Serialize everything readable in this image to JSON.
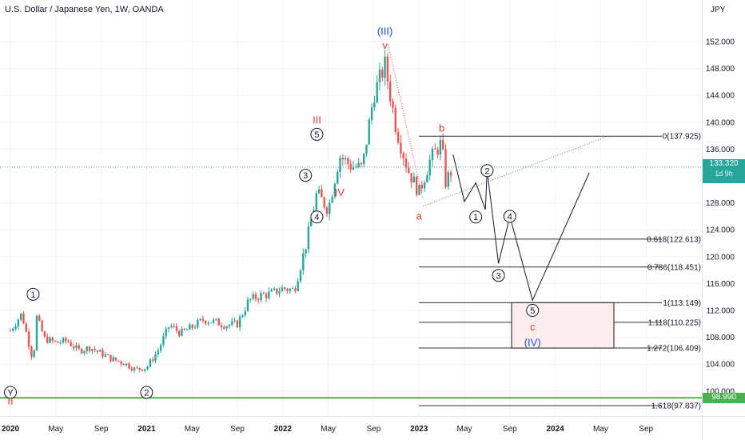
{
  "header": {
    "title": "U.S. Dollar / Japanese Yen, 1W, OANDA",
    "currency": "JPY"
  },
  "price_tags": {
    "current_price": "133.320",
    "countdown": "1d 9h",
    "support_level": "98.990"
  },
  "colors": {
    "up": "#26a69a",
    "down": "#ef5350",
    "current_line": "#26a69a",
    "support_line": "#4caf50",
    "wave_red": "#e53935",
    "wave_blue": "#1e4fd8",
    "projection": "#131722",
    "target_box": "#fdeeee"
  },
  "chart_data": {
    "type": "candlestick",
    "symbol": "USDJPY",
    "interval": "1W",
    "x_axis_ticks": [
      {
        "label": "2020",
        "date": "2020-01"
      },
      {
        "label": "May",
        "date": "2020-05"
      },
      {
        "label": "Sep",
        "date": "2020-09"
      },
      {
        "label": "2021",
        "date": "2021-01"
      },
      {
        "label": "May",
        "date": "2021-05"
      },
      {
        "label": "Sep",
        "date": "2021-09"
      },
      {
        "label": "2022",
        "date": "2022-01"
      },
      {
        "label": "May",
        "date": "2022-05"
      },
      {
        "label": "Sep",
        "date": "2022-09"
      },
      {
        "label": "2023",
        "date": "2023-01"
      },
      {
        "label": "May",
        "date": "2023-05"
      },
      {
        "label": "Sep",
        "date": "2023-09"
      },
      {
        "label": "2024",
        "date": "2024-01"
      },
      {
        "label": "May",
        "date": "2024-05"
      },
      {
        "label": "Sep",
        "date": "2024-09"
      }
    ],
    "y_axis_ticks": [
      "152.000",
      "148.000",
      "144.000",
      "140.000",
      "136.000",
      "128.000",
      "124.000",
      "120.000",
      "116.000",
      "112.000",
      "108.000",
      "104.000",
      "100.000"
    ],
    "ylim": [
      97.0,
      156.0
    ],
    "price_path": [
      [
        "2020-01",
        109.0
      ],
      [
        "2020-02",
        111.5
      ],
      [
        "2020-03",
        104.5
      ],
      [
        "2020-03",
        111.0
      ],
      [
        "2020-04",
        107.8
      ],
      [
        "2020-05",
        107.2
      ],
      [
        "2020-06",
        107.5
      ],
      [
        "2020-07",
        106.0
      ],
      [
        "2020-08",
        106.5
      ],
      [
        "2020-09",
        105.6
      ],
      [
        "2020-10",
        104.7
      ],
      [
        "2020-11",
        104.2
      ],
      [
        "2020-12",
        103.2
      ],
      [
        "2021-01",
        103.5
      ],
      [
        "2021-02",
        106.0
      ],
      [
        "2021-03",
        109.8
      ],
      [
        "2021-04",
        108.6
      ],
      [
        "2021-05",
        109.5
      ],
      [
        "2021-06",
        110.6
      ],
      [
        "2021-07",
        110.3
      ],
      [
        "2021-08",
        109.8
      ],
      [
        "2021-09",
        110.0
      ],
      [
        "2021-10",
        113.5
      ],
      [
        "2021-11",
        114.2
      ],
      [
        "2021-12",
        114.5
      ],
      [
        "2022-01",
        115.3
      ],
      [
        "2022-02",
        115.0
      ],
      [
        "2022-03",
        121.5
      ],
      [
        "2022-04",
        129.5
      ],
      [
        "2022-05",
        127.0
      ],
      [
        "2022-06",
        135.0
      ],
      [
        "2022-07",
        133.5
      ],
      [
        "2022-08",
        133.2
      ],
      [
        "2022-09",
        144.0
      ],
      [
        "2022-10",
        148.5
      ],
      [
        "2022-11",
        139.0
      ],
      [
        "2022-12",
        133.0
      ],
      [
        "2023-01",
        129.5
      ],
      [
        "2023-02",
        134.5
      ],
      [
        "2023-03",
        137.0
      ],
      [
        "2023-03",
        131.0
      ],
      [
        "2023-04",
        133.3
      ]
    ],
    "fibonacci_levels": [
      {
        "label": "0(137.925)",
        "value": 137.925
      },
      {
        "label": "0.618(122.613)",
        "value": 122.613
      },
      {
        "label": "0.786(118.451)",
        "value": 118.451
      },
      {
        "label": "1(113.149)",
        "value": 113.149
      },
      {
        "label": "1.118(110.225)",
        "value": 110.225
      },
      {
        "label": "1.272(106.409)",
        "value": 106.409
      },
      {
        "label": "1.618(97.837)",
        "value": 97.837
      }
    ],
    "current_price": 133.32,
    "support_level": 98.99,
    "target_zone": {
      "from": 106.4,
      "to": 113.15
    },
    "wave_labels": [
      {
        "text": "(III)",
        "date": "2022-10",
        "price": 153.5,
        "color": "blue"
      },
      {
        "text": "v",
        "date": "2022-10",
        "price": 151.4,
        "color": "red"
      },
      {
        "text": "III",
        "date": "2022-04",
        "price": 140.3,
        "color": "red"
      },
      {
        "text": "5",
        "date": "2022-04",
        "price": 138.2,
        "circled": true
      },
      {
        "text": "3",
        "date": "2022-03",
        "price": 132.1,
        "circled": true
      },
      {
        "text": "IV",
        "date": "2022-06",
        "price": 129.5,
        "color": "red"
      },
      {
        "text": "4",
        "date": "2022-04",
        "price": 125.9,
        "circled": true
      },
      {
        "text": "b",
        "date": "2023-03",
        "price": 139.1,
        "color": "red"
      },
      {
        "text": "a",
        "date": "2023-01",
        "price": 126.0,
        "color": "red"
      },
      {
        "text": "2",
        "date": "2023-07",
        "price": 132.8,
        "circled": true
      },
      {
        "text": "1",
        "date": "2023-06",
        "price": 125.9,
        "circled": true
      },
      {
        "text": "4",
        "date": "2023-09",
        "price": 126.0,
        "circled": true
      },
      {
        "text": "3",
        "date": "2023-08",
        "price": 117.2,
        "circled": true
      },
      {
        "text": "5",
        "date": "2023-11",
        "price": 112.0,
        "circled": true
      },
      {
        "text": "c",
        "date": "2023-11",
        "price": 109.5,
        "color": "red"
      },
      {
        "text": "(IV)",
        "date": "2023-11",
        "price": 107.2,
        "color": "blue"
      },
      {
        "text": "1",
        "date": "2020-03",
        "price": 114.4,
        "circled": true
      },
      {
        "text": "Y",
        "date": "2020-01",
        "price": 99.8,
        "circled": true
      },
      {
        "text": "II",
        "date": "2020-01",
        "price": 98.5,
        "color": "red"
      },
      {
        "text": "2",
        "date": "2021-01",
        "price": 99.8,
        "circled": true
      }
    ],
    "projection_path": [
      [
        "2023-04",
        135.2
      ],
      [
        "2023-05",
        128.2
      ],
      [
        "2023-06",
        131.0
      ],
      [
        "2023-06",
        127.0
      ],
      [
        "2023-07",
        132.8
      ],
      [
        "2023-08",
        119.0
      ],
      [
        "2023-09",
        126.0
      ],
      [
        "2023-11",
        113.5
      ],
      [
        "2024-04",
        132.5
      ]
    ]
  }
}
